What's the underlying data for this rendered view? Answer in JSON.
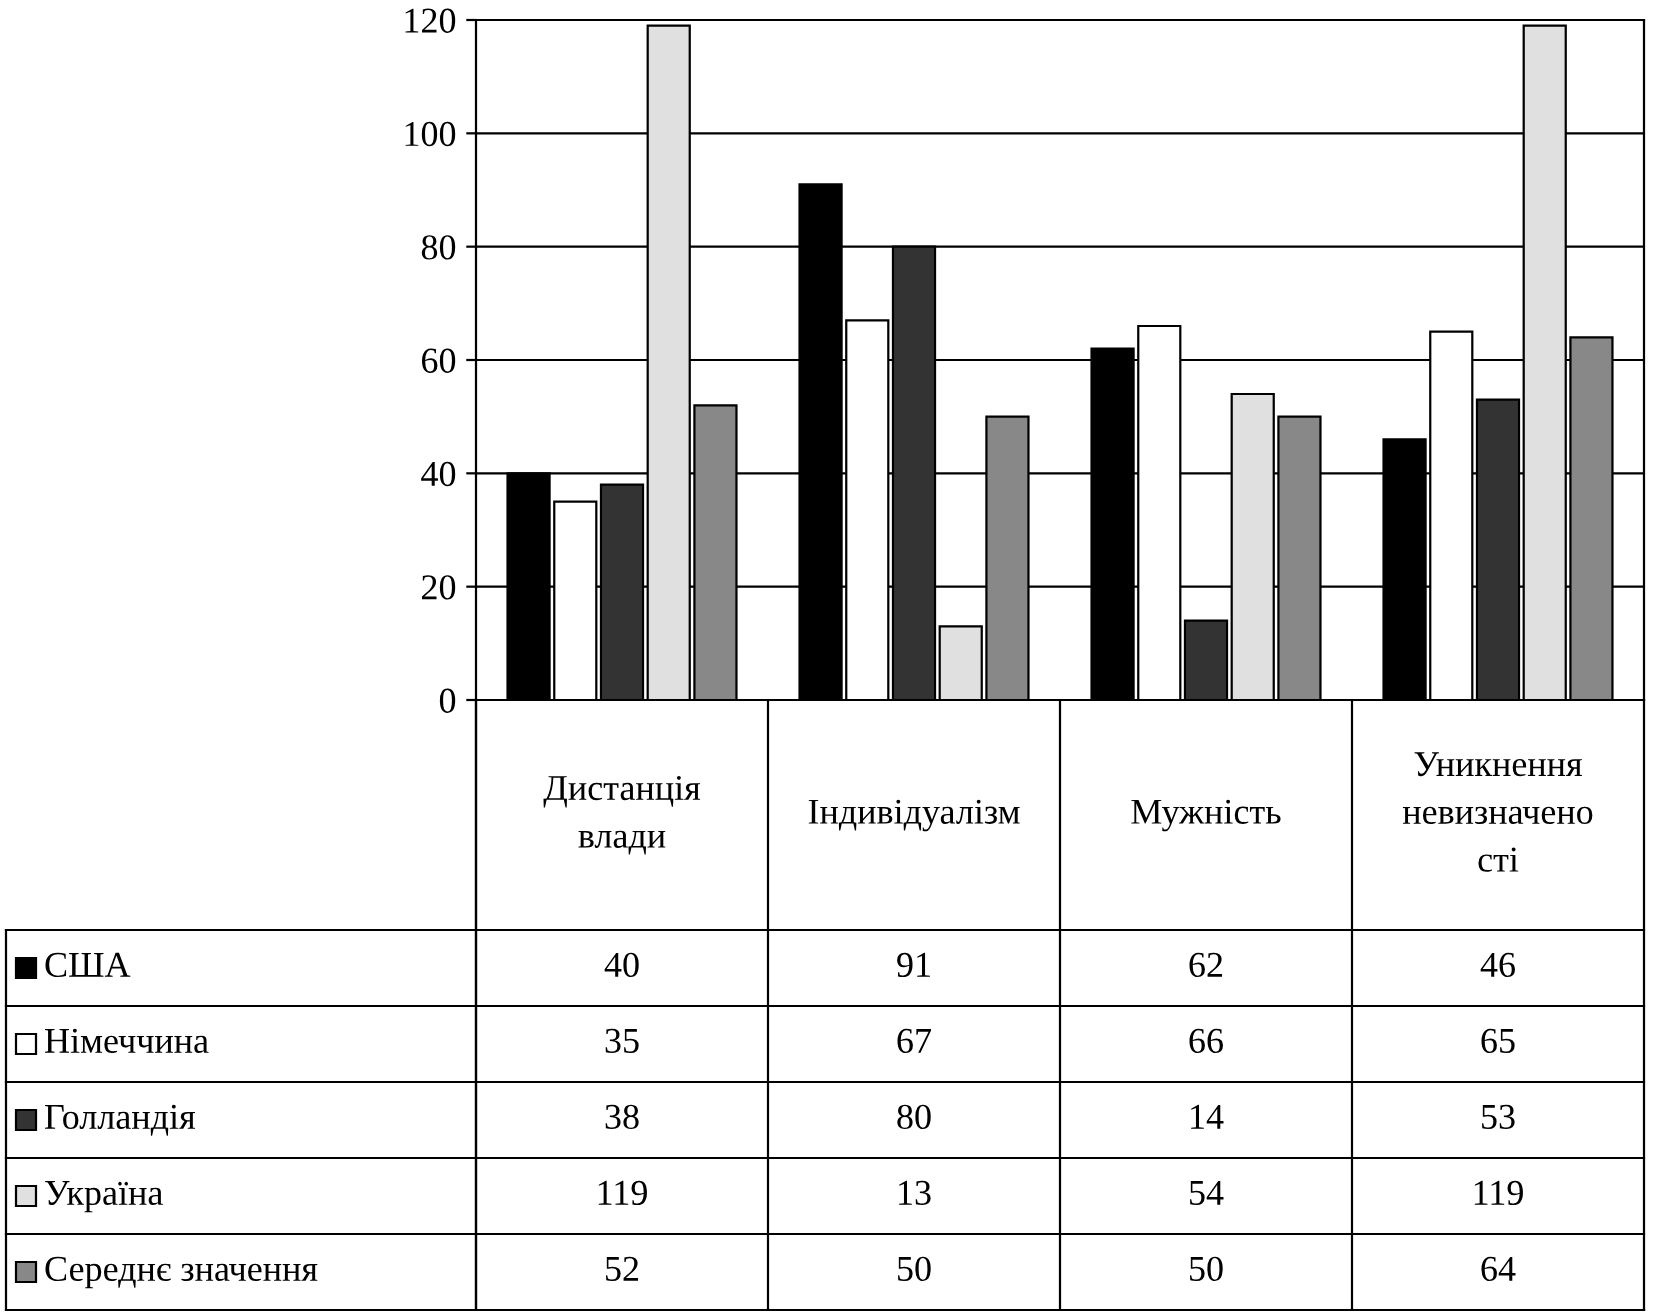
{
  "chart_data": {
    "type": "bar",
    "categories": [
      "Дистанція\nвлади",
      "Індивідуалізм",
      "Мужність",
      "Уникнення\nневизначено\nсті"
    ],
    "series": [
      {
        "name": "США",
        "color": "#000000",
        "values": [
          40,
          91,
          62,
          46
        ]
      },
      {
        "name": "Німеччина",
        "color": "#ffffff",
        "values": [
          35,
          67,
          66,
          65
        ]
      },
      {
        "name": "Голландія",
        "color": "#333333",
        "values": [
          38,
          80,
          14,
          53
        ]
      },
      {
        "name": "Україна",
        "color": "#e0e0e0",
        "values": [
          119,
          13,
          54,
          119
        ]
      },
      {
        "name": "Середнє значення",
        "color": "#888888",
        "values": [
          52,
          50,
          50,
          64
        ]
      }
    ],
    "ylim": [
      0,
      120
    ],
    "yticks": [
      0,
      20,
      40,
      60,
      80,
      100,
      120
    ],
    "grid": "y",
    "legend": "bottom",
    "data_labels": true
  }
}
